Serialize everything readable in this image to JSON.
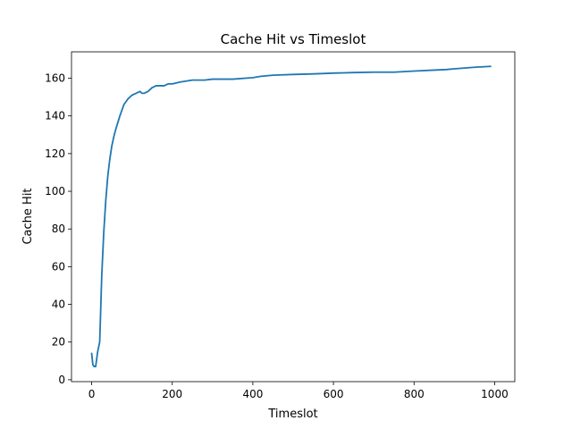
{
  "chart_data": {
    "type": "line",
    "title": "Cache Hit vs Timeslot",
    "xlabel": "Timeslot",
    "ylabel": "Cache Hit",
    "xlim": [
      -50,
      1050
    ],
    "ylim": [
      -1,
      174
    ],
    "xticks": [
      0,
      200,
      400,
      600,
      800,
      1000
    ],
    "yticks": [
      0,
      20,
      40,
      60,
      80,
      100,
      120,
      140,
      160
    ],
    "grid": false,
    "series": [
      {
        "color": "#1f77b4",
        "x": [
          0,
          3,
          6,
          10,
          15,
          20,
          25,
          30,
          35,
          40,
          45,
          50,
          55,
          60,
          70,
          80,
          90,
          100,
          110,
          120,
          125,
          130,
          140,
          150,
          160,
          170,
          180,
          190,
          200,
          220,
          250,
          280,
          300,
          350,
          400,
          420,
          450,
          500,
          550,
          600,
          650,
          700,
          750,
          800,
          850,
          880,
          900,
          950,
          990
        ],
        "y": [
          14,
          8,
          7,
          7,
          15,
          20,
          55,
          78,
          95,
          108,
          117,
          124,
          129,
          133,
          140,
          146,
          149,
          151,
          152,
          153,
          152,
          152,
          153,
          155,
          156,
          156,
          156,
          157,
          157,
          158,
          159,
          159,
          159.5,
          159.5,
          160.3,
          161,
          161.6,
          162,
          162.3,
          162.7,
          163,
          163.2,
          163.2,
          163.8,
          164.3,
          164.6,
          165,
          165.8,
          166.3
        ]
      }
    ]
  }
}
